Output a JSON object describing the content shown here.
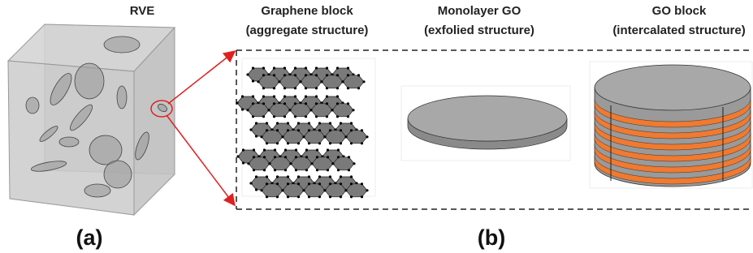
{
  "panel_a": {
    "title": "RVE",
    "label": "(a)"
  },
  "panel_b": {
    "label": "(b)",
    "items": [
      {
        "title": "Graphene block",
        "subtitle": "(aggregate structure)"
      },
      {
        "title": "Monolayer GO",
        "subtitle": "(exfolied structure)"
      },
      {
        "title": "GO block",
        "subtitle": "(intercalated structure)"
      }
    ]
  }
}
